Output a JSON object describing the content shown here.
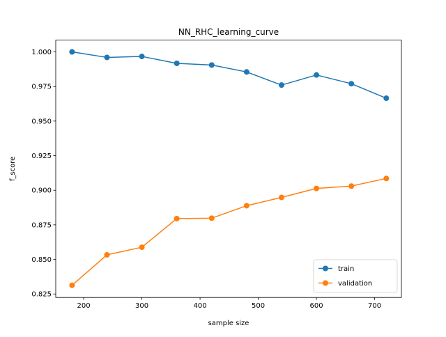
{
  "chart_data": {
    "type": "line",
    "title": "NN_RHC_learning_curve",
    "xlabel": "sample size",
    "ylabel": "f_score",
    "xlim": [
      152,
      746
    ],
    "ylim": [
      0.8225,
      1.0085
    ],
    "xticks": [
      200,
      300,
      400,
      500,
      600,
      700
    ],
    "yticks": [
      0.825,
      0.85,
      0.875,
      0.9,
      0.925,
      0.95,
      0.975,
      1.0
    ],
    "ytick_labels": [
      "0.825",
      "0.850",
      "0.875",
      "0.900",
      "0.925",
      "0.950",
      "0.975",
      "1.000"
    ],
    "x": [
      180,
      240,
      300,
      360,
      420,
      480,
      540,
      600,
      660,
      720
    ],
    "series": [
      {
        "name": "train",
        "color": "#1f77b4",
        "values": [
          1.0,
          0.996,
          0.9967,
          0.9917,
          0.9905,
          0.9855,
          0.976,
          0.9833,
          0.977,
          0.9665
        ]
      },
      {
        "name": "validation",
        "color": "#ff7f0e",
        "values": [
          0.8313,
          0.8533,
          0.8588,
          0.8795,
          0.8798,
          0.8888,
          0.8948,
          0.9013,
          0.903,
          0.9085
        ]
      }
    ],
    "legend": "lower-right",
    "grid": false,
    "markers": "circle"
  }
}
